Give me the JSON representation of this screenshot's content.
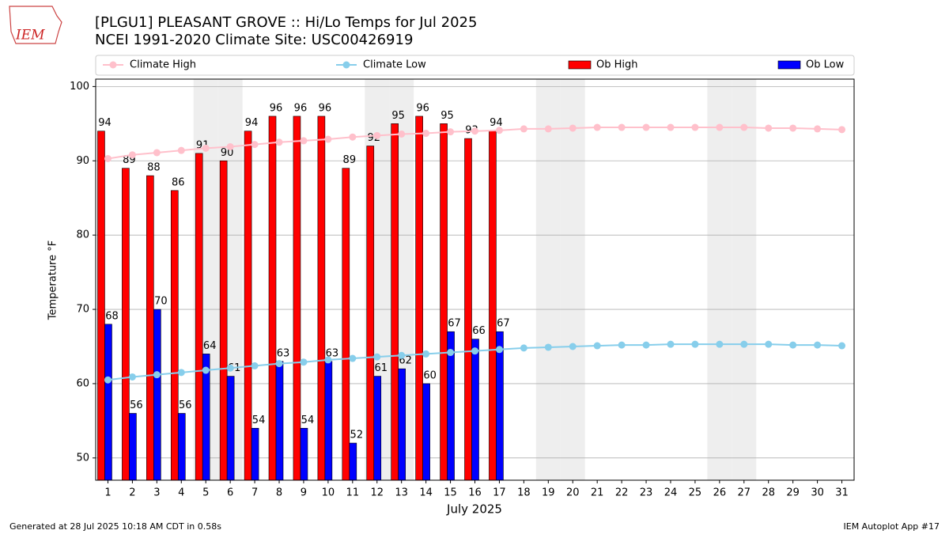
{
  "chart_data": {
    "type": "bar_line",
    "logo_text": "IEM",
    "title": "[PLGU1] PLEASANT GROVE :: Hi/Lo Temps for Jul 2025",
    "subtitle": "NCEI 1991-2020 Climate Site: USC00426919",
    "xlabel": "July 2025",
    "ylabel": "Temperature °F",
    "footer_left": "Generated at 28 Jul 2025 10:18 AM CDT in 0.58s",
    "footer_right": "IEM Autoplot App #17",
    "categories": [
      "1",
      "2",
      "3",
      "4",
      "5",
      "6",
      "7",
      "8",
      "9",
      "10",
      "11",
      "12",
      "13",
      "14",
      "15",
      "16",
      "17",
      "18",
      "19",
      "20",
      "21",
      "22",
      "23",
      "24",
      "25",
      "26",
      "27",
      "28",
      "29",
      "30",
      "31"
    ],
    "shaded_days": [
      "5",
      "6",
      "12",
      "13",
      "19",
      "20",
      "26",
      "27"
    ],
    "ylim": [
      47,
      101
    ],
    "yticks": [
      50,
      60,
      70,
      80,
      90,
      100
    ],
    "grid": true,
    "series": [
      {
        "name": "Climate High",
        "kind": "line",
        "color": "#ffc0cb",
        "values": [
          90.3,
          90.8,
          91.1,
          91.4,
          91.7,
          91.9,
          92.2,
          92.5,
          92.7,
          92.9,
          93.2,
          93.4,
          93.6,
          93.7,
          93.9,
          94.0,
          94.1,
          94.3,
          94.3,
          94.4,
          94.5,
          94.5,
          94.5,
          94.5,
          94.5,
          94.5,
          94.5,
          94.4,
          94.4,
          94.3,
          94.2
        ]
      },
      {
        "name": "Climate Low",
        "kind": "line",
        "color": "#87ceeb",
        "values": [
          60.5,
          60.9,
          61.2,
          61.5,
          61.8,
          62.1,
          62.4,
          62.7,
          62.9,
          63.2,
          63.4,
          63.6,
          63.8,
          64.0,
          64.2,
          64.4,
          64.6,
          64.8,
          64.9,
          65.0,
          65.1,
          65.2,
          65.2,
          65.3,
          65.3,
          65.3,
          65.3,
          65.3,
          65.2,
          65.2,
          65.1
        ]
      },
      {
        "name": "Ob High",
        "kind": "bar",
        "color": "#ff0000",
        "values": [
          94,
          89,
          88,
          86,
          91,
          90,
          94,
          96,
          96,
          96,
          89,
          92,
          95,
          96,
          95,
          93,
          94,
          null,
          null,
          null,
          null,
          null,
          null,
          null,
          null,
          null,
          null,
          null,
          null,
          null,
          null
        ]
      },
      {
        "name": "Ob Low",
        "kind": "bar",
        "color": "#0000ff",
        "values": [
          68,
          56,
          70,
          56,
          64,
          61,
          54,
          63,
          54,
          63,
          52,
          61,
          62,
          60,
          67,
          66,
          67,
          null,
          null,
          null,
          null,
          null,
          null,
          null,
          null,
          null,
          null,
          null,
          null,
          null,
          null
        ]
      }
    ]
  }
}
